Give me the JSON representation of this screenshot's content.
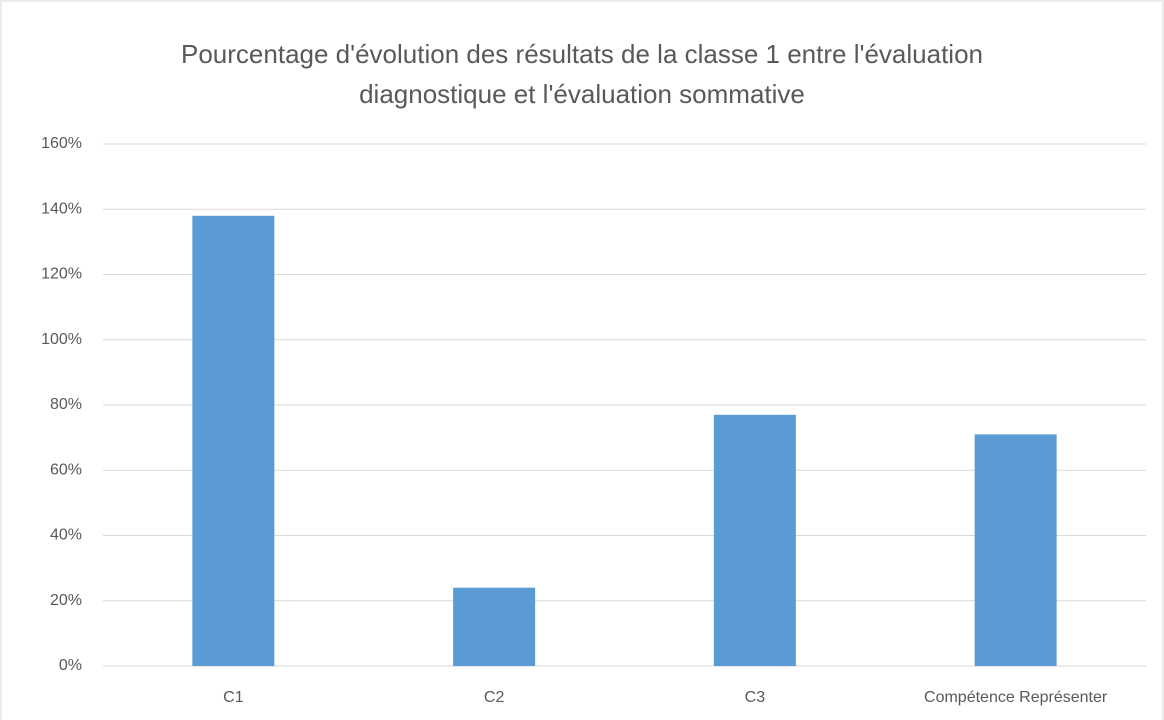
{
  "chart_data": {
    "type": "bar",
    "title": [
      "Pourcentage d'évolution des résultats de la classe 1 entre l'évaluation",
      "diagnostique et l'évaluation sommative"
    ],
    "categories": [
      "C1",
      "C2",
      "C3",
      "Compétence Représenter"
    ],
    "values": [
      138,
      24,
      77,
      71
    ],
    "color": "#5b9bd5",
    "ylim": [
      0,
      160
    ],
    "yticks": [
      {
        "value": 0,
        "label": "0%"
      },
      {
        "value": 20,
        "label": "20%"
      },
      {
        "value": 40,
        "label": "40%"
      },
      {
        "value": 60,
        "label": "60%"
      },
      {
        "value": 80,
        "label": "80%"
      },
      {
        "value": 100,
        "label": "100%"
      },
      {
        "value": 120,
        "label": "120%"
      },
      {
        "value": 140,
        "label": "140%"
      },
      {
        "value": 160,
        "label": "160%"
      }
    ],
    "grid": true
  }
}
